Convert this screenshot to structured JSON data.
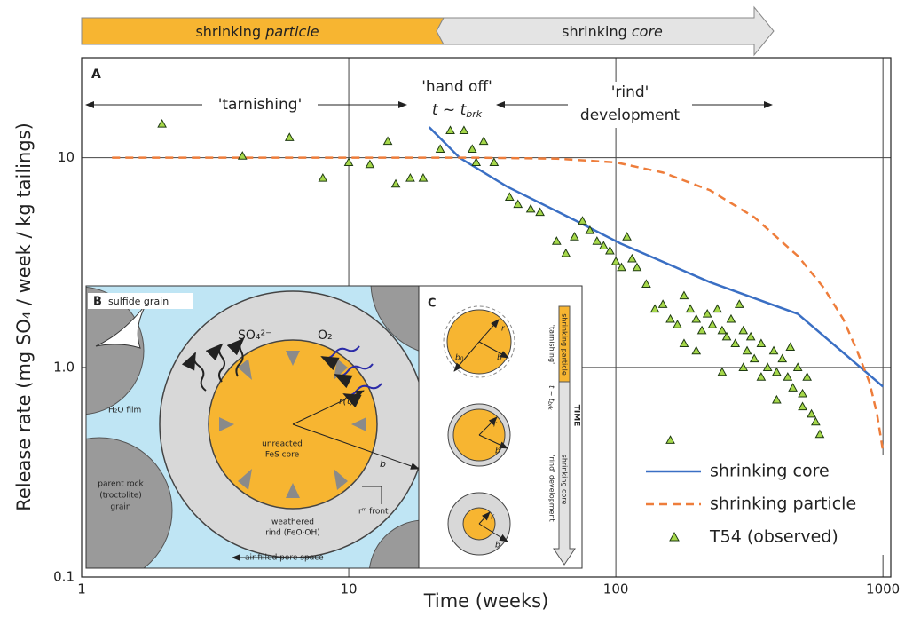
{
  "chart_data": {
    "type": "line",
    "phases": [
      {
        "prefix": "shrinking",
        "emph": "particle",
        "color": "#f7b531"
      },
      {
        "prefix": "shrinking",
        "emph": "core",
        "color": "#e4e4e4"
      }
    ],
    "panel_label": "A",
    "annotations": {
      "tarnishing": "'tarnishing'",
      "handoff": "'hand off'",
      "handoff_t": "t ~ t",
      "handoff_sub": "brk",
      "rind": "'rind'",
      "development": "development"
    },
    "xlabel": "Time (weeks)",
    "ylabel": "Release rate (mg SO₄ / week / kg tailings)",
    "xscale": "log",
    "yscale": "log",
    "xlim": [
      1,
      1070
    ],
    "ylim": [
      0.1,
      30
    ],
    "xticks": [
      1,
      10,
      100,
      1000
    ],
    "yticks": [
      0.1,
      {
        "value": 1,
        "label": "1.0"
      },
      10
    ],
    "grid": true,
    "legend": "lower right",
    "series": [
      {
        "name": "shrinking core",
        "type": "line",
        "color": "#3a6fc4",
        "dash": false,
        "x": [
          20,
          26,
          39,
          71,
          104,
          225,
          480,
          1000
        ],
        "values": [
          14,
          10,
          7.3,
          5,
          3.9,
          2.55,
          1.8,
          0.81
        ]
      },
      {
        "name": "shrinking particle",
        "type": "line",
        "color": "#ee7d3b",
        "dash": true,
        "x": [
          1.3,
          10,
          30,
          60,
          100,
          150,
          225,
          330,
          480,
          600,
          710,
          800,
          890,
          950,
          1000
        ],
        "values": [
          10,
          10,
          10,
          9.9,
          9.5,
          8.5,
          7,
          5.2,
          3.4,
          2.4,
          1.7,
          1.2,
          0.85,
          0.6,
          0.4
        ]
      },
      {
        "name": "T54 (observed)",
        "type": "scatter",
        "color": "#a6d84a",
        "x": [
          2,
          4,
          6,
          8,
          10,
          12,
          14,
          15,
          17,
          19,
          22,
          24,
          27,
          29,
          30,
          32,
          35,
          40,
          43,
          48,
          52,
          60,
          65,
          70,
          75,
          80,
          85,
          90,
          95,
          100,
          105,
          110,
          115,
          120,
          130,
          140,
          150,
          160,
          170,
          180,
          190,
          200,
          210,
          220,
          230,
          240,
          250,
          260,
          270,
          280,
          290,
          300,
          310,
          320,
          330,
          350,
          370,
          390,
          400,
          420,
          440,
          460,
          480,
          500,
          520,
          540,
          560,
          580,
          160,
          200,
          250,
          300,
          350,
          450,
          500,
          180,
          400
        ],
        "values": [
          14.5,
          10.2,
          12.5,
          8,
          9.5,
          9.3,
          12,
          7.5,
          8,
          8,
          11,
          13.5,
          13.5,
          11,
          9.5,
          12,
          9.5,
          6.5,
          6,
          5.7,
          5.5,
          4,
          3.5,
          4.2,
          5,
          4.5,
          4,
          3.8,
          3.6,
          3.2,
          3,
          4.2,
          3.3,
          3,
          2.5,
          1.9,
          2,
          1.7,
          1.6,
          2.2,
          1.9,
          1.7,
          1.5,
          1.8,
          1.6,
          1.9,
          1.5,
          1.4,
          1.7,
          1.3,
          2,
          1.5,
          1.2,
          1.4,
          1.1,
          1.3,
          1,
          1.2,
          0.95,
          1.1,
          0.9,
          0.8,
          1,
          0.75,
          0.9,
          0.6,
          0.55,
          0.48,
          0.45,
          1.2,
          0.95,
          1,
          0.9,
          1.25,
          0.65,
          1.3,
          0.7
        ]
      }
    ],
    "insets": {
      "B": {
        "label": "B",
        "title": "sulfide grain",
        "so4": "SO₄²⁻",
        "o2": "O₂",
        "rt": "r(t)",
        "core1": "unreacted",
        "core2": "FeS core",
        "b": "b",
        "film": "H₂O film",
        "rock1": "parent rock",
        "rock2": "(troctolite)",
        "rock3": "grain",
        "rind1": "weathered",
        "rind2": "rind (FeO·OH)",
        "front": "rᵐ front",
        "pore": "air-filled pore space"
      },
      "C": {
        "label": "C",
        "c1": [
          "r",
          "b₀",
          "b"
        ],
        "c2": [
          "r",
          "b"
        ],
        "c3": [
          "r",
          "b"
        ],
        "tarnishing": "'tarnishing'",
        "particle": "shrinking particle",
        "handoff_t": "t ~ t",
        "handoff_sub": "brk",
        "time": "TIME",
        "rind": "'rind' development",
        "core": "shrinking core"
      }
    }
  }
}
